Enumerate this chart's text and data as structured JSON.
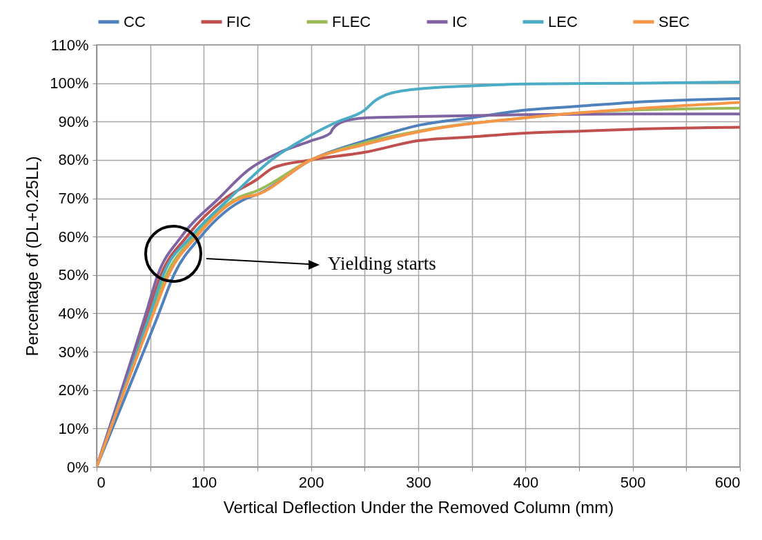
{
  "chart_data": {
    "type": "line",
    "xlabel": "Vertical Deflection Under the Removed Column (mm)",
    "ylabel": "Percentage of (DL+0.25LL)",
    "xlim": [
      0,
      600
    ],
    "xticks": [
      0,
      {
        "value": 50,
        "label": null
      },
      100,
      {
        "value": 150,
        "label": null
      },
      200,
      {
        "value": 250,
        "label": null
      },
      300,
      {
        "value": 350,
        "label": null
      },
      400,
      {
        "value": 450,
        "label": null
      },
      500,
      {
        "value": 550,
        "label": null
      },
      600
    ],
    "ylim": [
      0,
      110
    ],
    "yticks": [
      {
        "value": 0,
        "label": "0%"
      },
      {
        "value": 10,
        "label": "10%"
      },
      {
        "value": 20,
        "label": "20%"
      },
      {
        "value": 30,
        "label": "30%"
      },
      {
        "value": 40,
        "label": "40%"
      },
      {
        "value": 50,
        "label": "50%"
      },
      {
        "value": 60,
        "label": "60%"
      },
      {
        "value": 70,
        "label": "70%"
      },
      {
        "value": 80,
        "label": "80%"
      },
      {
        "value": 90,
        "label": "90%"
      },
      {
        "value": 100,
        "label": "100%"
      },
      {
        "value": 110,
        "label": "110%"
      }
    ],
    "grid": true,
    "legend": "top",
    "line_style": "solid",
    "marker": "none",
    "series": [
      {
        "name": "CC",
        "color": "#4f81bd",
        "x": [
          0,
          58,
          72,
          97,
          140,
          150,
          200,
          250,
          300,
          350,
          400,
          450,
          500,
          600
        ],
        "values": [
          0,
          40,
          50,
          60,
          70,
          71,
          80,
          85,
          89,
          91,
          93,
          94,
          95,
          96
        ]
      },
      {
        "name": "FIC",
        "color": "#c0504d",
        "x": [
          0,
          48,
          60,
          84,
          120,
          150,
          165,
          200,
          250,
          300,
          350,
          400,
          450,
          500,
          600
        ],
        "values": [
          0,
          40,
          50,
          60,
          70,
          75,
          78,
          80,
          82,
          85,
          86,
          87,
          87.5,
          88,
          88.5
        ]
      },
      {
        "name": "FLEC",
        "color": "#9bbb59",
        "x": [
          0,
          51,
          65,
          91,
          131,
          150,
          200,
          250,
          300,
          400,
          500,
          600
        ],
        "values": [
          0,
          40,
          50,
          60,
          70,
          72,
          80,
          84.5,
          87.5,
          91,
          93,
          93.5
        ]
      },
      {
        "name": "IC",
        "color": "#8064a2",
        "x": [
          0,
          46,
          57,
          79,
          114,
          142,
          171,
          200,
          218,
          220,
          230,
          252,
          300,
          400,
          500,
          600
        ],
        "values": [
          0,
          40,
          50,
          60,
          70,
          77.5,
          82,
          85,
          87,
          88,
          90,
          91,
          91.3,
          91.8,
          92,
          92
        ]
      },
      {
        "name": "LEC",
        "color": "#4bacc6",
        "x": [
          0,
          50,
          62,
          88,
          124,
          163,
          200,
          225,
          250,
          260,
          270,
          285,
          300,
          350,
          400,
          500,
          600
        ],
        "values": [
          0,
          40,
          50,
          60,
          70,
          80,
          86.5,
          90,
          93,
          95.5,
          97,
          98,
          98.5,
          99.3,
          99.8,
          100,
          100.3
        ]
      },
      {
        "name": "SEC",
        "color": "#f79646",
        "x": [
          0,
          53,
          67,
          93,
          134,
          150,
          200,
          250,
          300,
          400,
          500,
          600
        ],
        "values": [
          0,
          40,
          50,
          60,
          70,
          71,
          80,
          84,
          87.3,
          91,
          93.3,
          95
        ]
      }
    ],
    "annotations": [
      "Yielding starts"
    ]
  }
}
